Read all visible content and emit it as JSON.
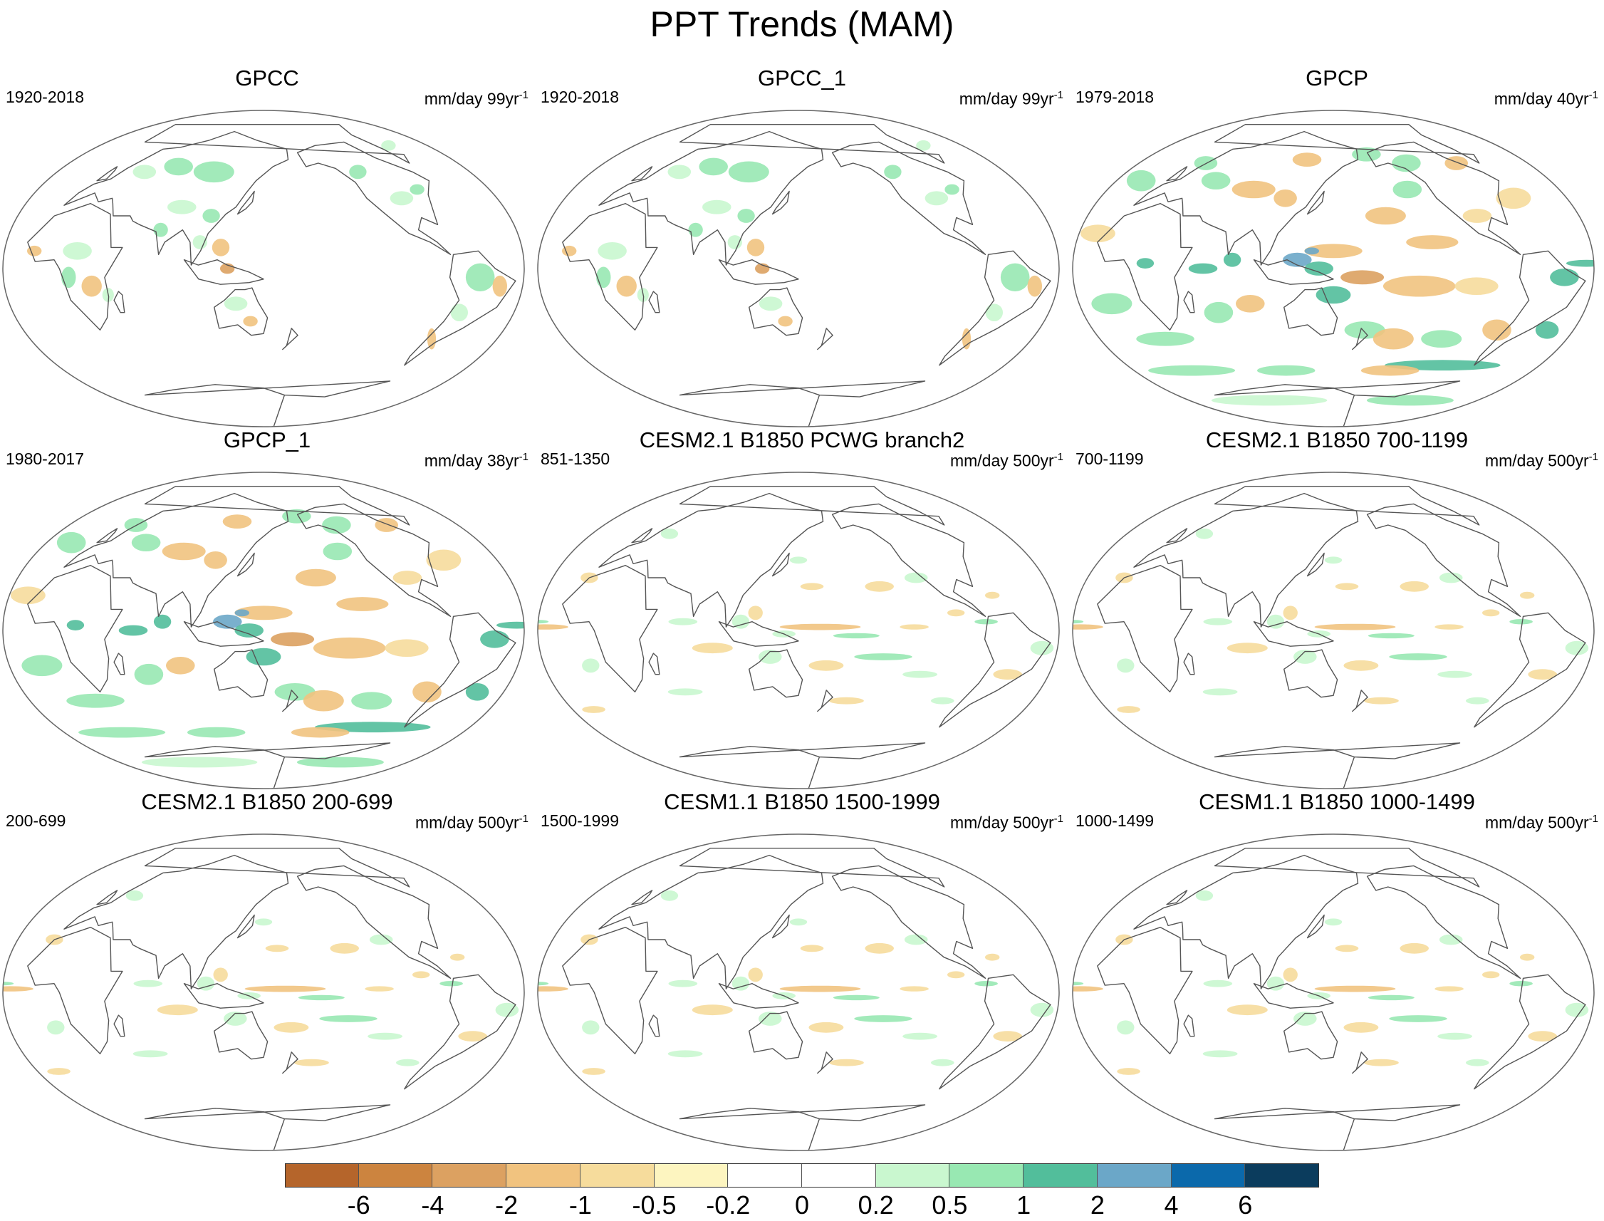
{
  "figure": {
    "title": "PPT Trends (MAM)",
    "panels": [
      {
        "title": "GPCC",
        "period": "1920-2018",
        "units": "mm/day 99yr",
        "units_exp": "-1",
        "pattern": "obs_land"
      },
      {
        "title": "GPCC_1",
        "period": "1920-2018",
        "units": "mm/day 99yr",
        "units_exp": "-1",
        "pattern": "obs_land"
      },
      {
        "title": "GPCP",
        "period": "1979-2018",
        "units": "mm/day 40yr",
        "units_exp": "-1",
        "pattern": "obs_global"
      },
      {
        "title": "GPCP_1",
        "period": "1980-2017",
        "units": "mm/day 38yr",
        "units_exp": "-1",
        "pattern": "obs_global"
      },
      {
        "title": "CESM2.1 B1850 PCWG branch2",
        "period": "851-1350",
        "units": "mm/day 500yr",
        "units_exp": "-1",
        "pattern": "model"
      },
      {
        "title": "CESM2.1 B1850 700-1199",
        "period": "700-1199",
        "units": "mm/day 500yr",
        "units_exp": "-1",
        "pattern": "model"
      },
      {
        "title": "CESM2.1 B1850 200-699",
        "period": "200-699",
        "units": "mm/day 500yr",
        "units_exp": "-1",
        "pattern": "model"
      },
      {
        "title": "CESM1.1 B1850 1500-1999",
        "period": "1500-1999",
        "units": "mm/day 500yr",
        "units_exp": "-1",
        "pattern": "model"
      },
      {
        "title": "CESM1.1 B1850 1000-1499",
        "period": "1000-1499",
        "units": "mm/day 500yr",
        "units_exp": "-1",
        "pattern": "model"
      }
    ]
  },
  "colorbar": {
    "colors": [
      "#b5652b",
      "#cc843f",
      "#dca161",
      "#f1c37f",
      "#f6dc9c",
      "#fdf5c0",
      "#ffffff",
      "#ffffff",
      "#c9f7cf",
      "#98e8b2",
      "#52be9b",
      "#6ba7c8",
      "#0b69ab",
      "#0b3c5d"
    ],
    "labels": [
      "-6",
      "-4",
      "-2",
      "-1",
      "-0.5",
      "-0.2",
      "0",
      "0.2",
      "0.5",
      "1",
      "2",
      "4",
      "6"
    ]
  }
}
